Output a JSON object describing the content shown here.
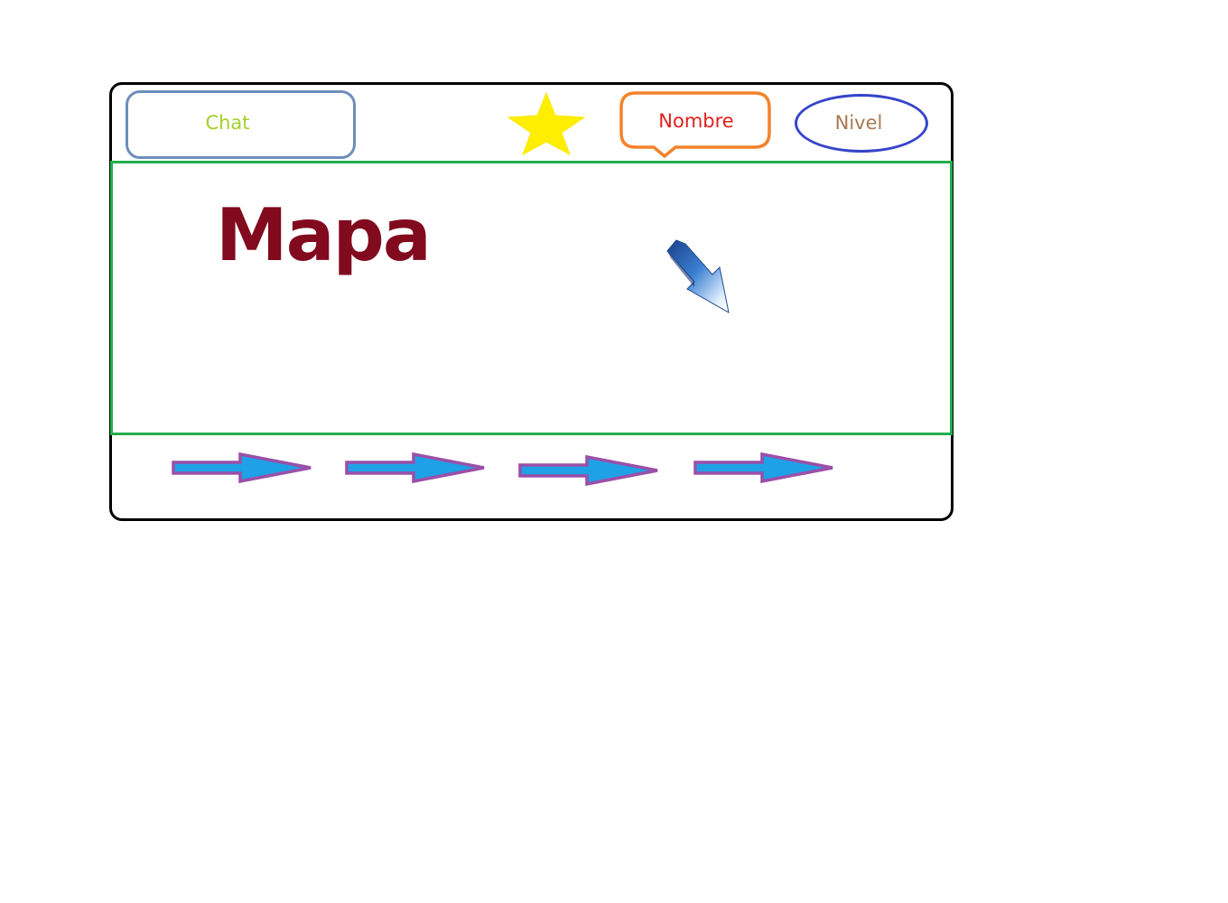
{
  "header": {
    "chat_label": "Chat",
    "name_label": "Nombre",
    "level_label": "Nivel"
  },
  "map": {
    "title": "Mapa"
  },
  "icons": {
    "favorite": "star-icon",
    "pointer": "cursor-arrow-icon",
    "navigation": "right-arrow-icon"
  },
  "colors": {
    "frame": "#000000",
    "chat_border": "#6d8fb9",
    "chat_text": "#a4d02b",
    "star": "#ffee00",
    "name_border": "#f4822a",
    "name_text": "#e0201e",
    "level_border": "#3644c8",
    "level_text": "#a67a52",
    "map_border": "#21ad4c",
    "map_title": "#820a1e",
    "arrow_fill": "#1ea1e6",
    "arrow_border": "#9b4fa8"
  }
}
